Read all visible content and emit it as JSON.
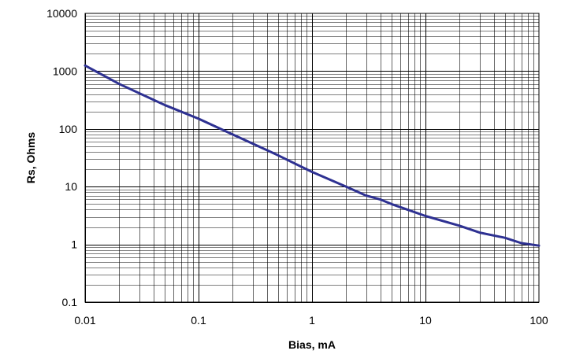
{
  "chart_data": {
    "type": "line",
    "title": "",
    "xlabel": "Bias, mA",
    "ylabel": "Rs, Ohms",
    "xscale": "log",
    "yscale": "log",
    "xlim": [
      0.01,
      100
    ],
    "ylim": [
      0.1,
      10000
    ],
    "x_tick_labels": [
      "0.01",
      "0.1",
      "1",
      "10",
      "100"
    ],
    "y_tick_labels": [
      "0.1",
      "1",
      "10",
      "100",
      "1000",
      "10000"
    ],
    "grid": true,
    "legend": "none",
    "colors": {
      "line": "#2e3192",
      "grid": "#000000",
      "background": "#ffffff"
    },
    "series": [
      {
        "x": [
          0.01,
          0.02,
          0.05,
          0.1,
          0.2,
          0.5,
          1,
          2,
          3,
          4,
          5,
          10,
          20,
          30,
          50,
          70,
          100
        ],
        "y": [
          1250,
          600,
          260,
          150,
          80,
          35,
          18,
          10,
          7,
          6,
          5,
          3.1,
          2.1,
          1.6,
          1.3,
          1.05,
          0.95
        ]
      }
    ]
  }
}
